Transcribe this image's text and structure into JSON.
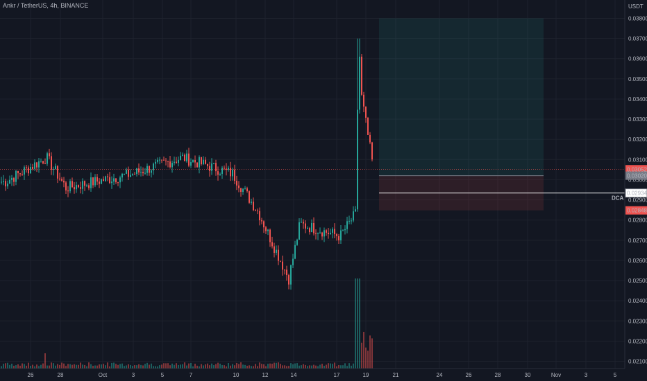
{
  "header": {
    "symbol_title": "Ankr / TetherUS, 4h, BINANCE"
  },
  "price_axis": {
    "currency": "USDT"
  },
  "colors": {
    "background": "#131722",
    "up": "#26a69a",
    "down": "#ef5350",
    "grid": "#1e222d",
    "text": "#b2b5be"
  },
  "chart_data": {
    "type": "candlestick",
    "title": "Ankr / TetherUS, 4h, BINANCE",
    "ylabel": "USDT",
    "ylim": [
      0.0205,
      0.0385
    ],
    "y_ticks": [
      "0.02100",
      "0.02200",
      "0.02300",
      "0.02400",
      "0.02500",
      "0.02600",
      "0.02700",
      "0.02800",
      "0.02900",
      "0.03000",
      "0.03100",
      "0.03200",
      "0.03300",
      "0.03400",
      "0.03500",
      "0.03600",
      "0.03700",
      "0.03800"
    ],
    "x_ticks": [
      "26",
      "28",
      "Oct",
      "3",
      "5",
      "7",
      "10",
      "12",
      "14",
      "17",
      "19",
      "21",
      "24",
      "26",
      "28",
      "30",
      "Nov",
      "3",
      "5"
    ],
    "grid": true,
    "price_markers": [
      {
        "label": "0.03052",
        "value": 0.03052,
        "color": "#ef5350"
      },
      {
        "label": "0.03020",
        "value": 0.0302,
        "color": "#787b86"
      },
      {
        "label": "0.02934",
        "value": 0.02934,
        "color": "#ffffff"
      },
      {
        "label": "0.02848",
        "value": 0.02848,
        "color": "#ef5350"
      }
    ],
    "annotations": [
      {
        "text": "DCA",
        "value": 0.02934
      }
    ],
    "position_tool": {
      "entry": 0.0302,
      "target": 0.038,
      "stop": 0.02848
    },
    "key_points": [
      {
        "date": "Sep 26",
        "price": 0.0299
      },
      {
        "date": "Sep 27",
        "price": 0.0311
      },
      {
        "date": "Sep 28",
        "price": 0.0296
      },
      {
        "date": "Oct 3",
        "price": 0.0303
      },
      {
        "date": "Oct 6",
        "price": 0.0311
      },
      {
        "date": "Oct 9",
        "price": 0.0303
      },
      {
        "date": "Oct 11",
        "price": 0.0284
      },
      {
        "date": "Oct 13",
        "price": 0.0251
      },
      {
        "date": "Oct 14",
        "price": 0.0278
      },
      {
        "date": "Oct 17",
        "price": 0.0272
      },
      {
        "date": "Oct 18",
        "price": 0.0283
      },
      {
        "date": "Oct 18",
        "price": 0.037
      },
      {
        "date": "Oct 19",
        "price": 0.0343
      },
      {
        "date": "Oct 19",
        "price": 0.0305
      }
    ]
  }
}
